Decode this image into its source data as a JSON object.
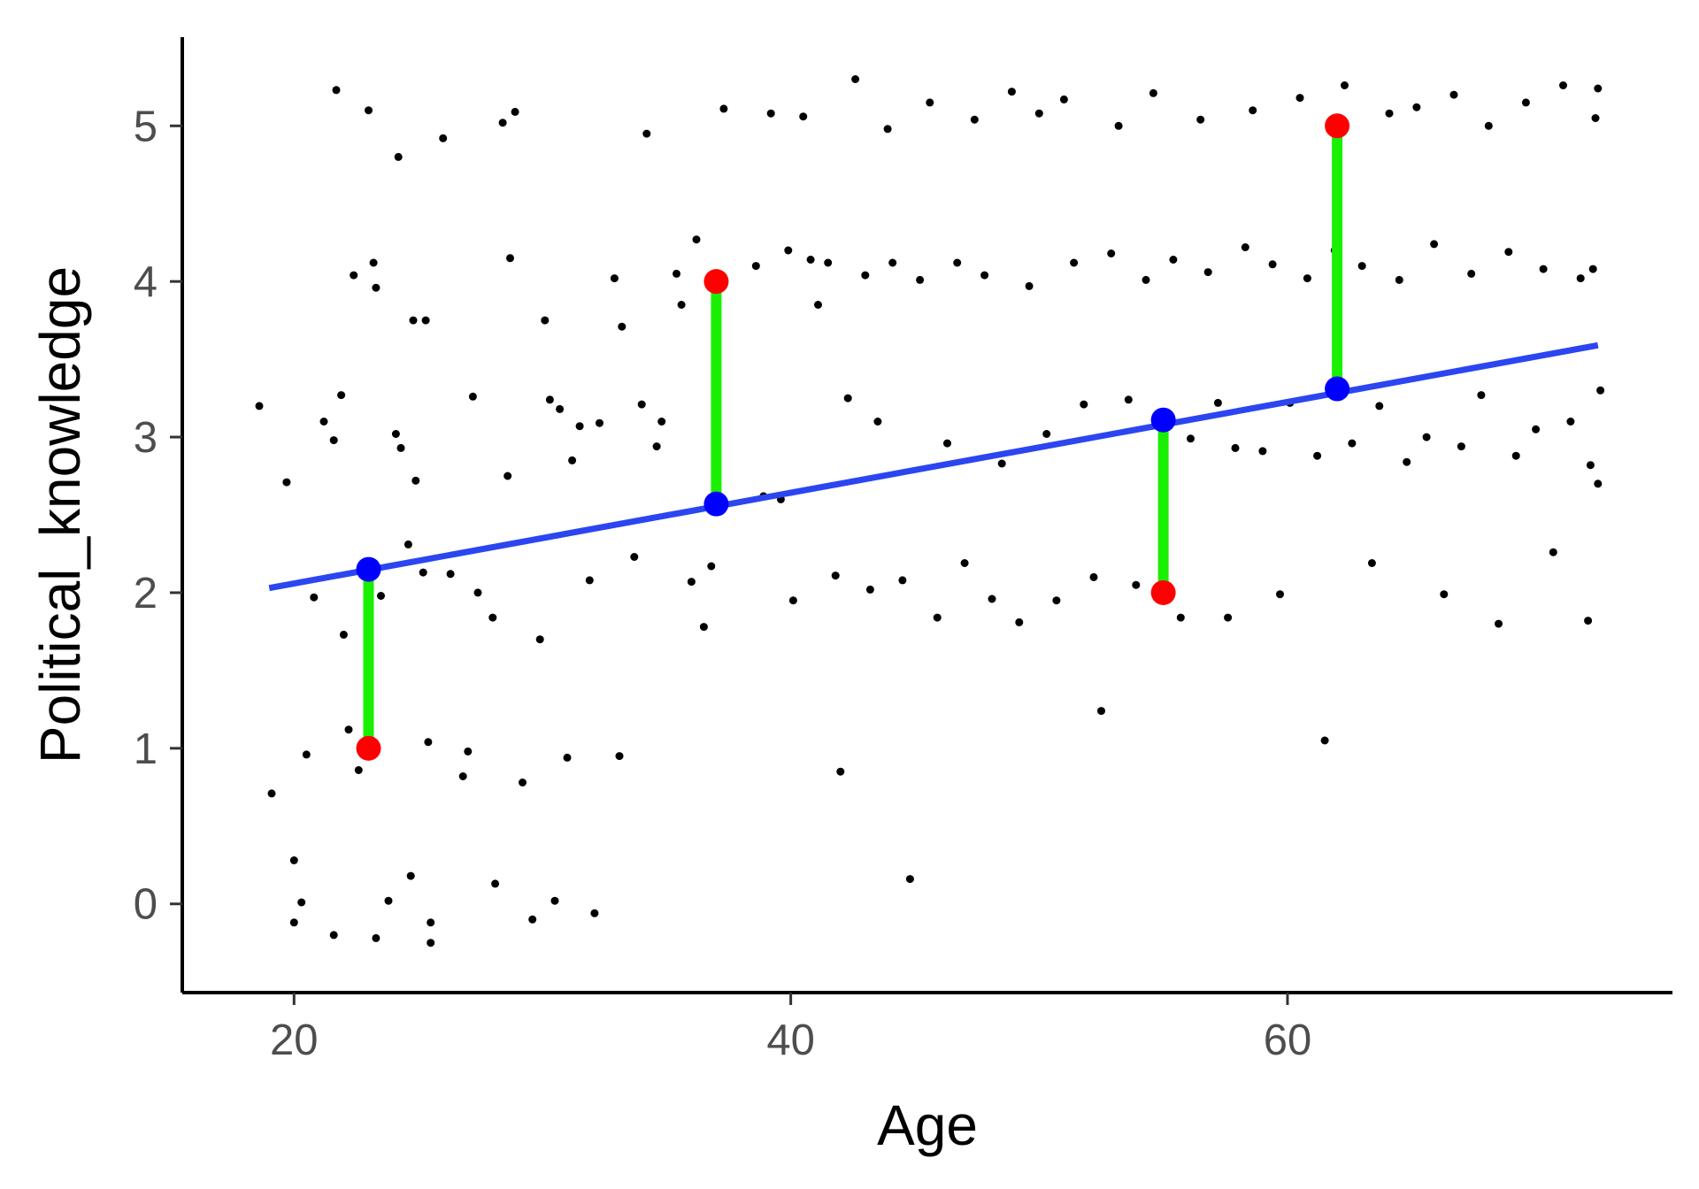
{
  "chart_data": {
    "type": "scatter",
    "title": "",
    "xlabel": "Age",
    "ylabel": "Political_knowledge",
    "xlim": [
      15.5,
      75.5
    ],
    "ylim": [
      -0.57,
      5.57
    ],
    "x_ticks": [
      20,
      40,
      60
    ],
    "y_ticks": [
      0,
      1,
      2,
      3,
      4,
      5
    ],
    "grid": false,
    "legend": "none",
    "colors": {
      "points": "#000000",
      "regression_line": "#2b46f0",
      "residual": "#19f000",
      "observed": "#ff0000",
      "predicted": "#0000ff"
    },
    "regression_line": {
      "x": [
        19,
        72.5
      ],
      "y": [
        2.03,
        3.59
      ]
    },
    "highlighted": [
      {
        "x": 23,
        "observed": 1,
        "predicted": 2.15
      },
      {
        "x": 37,
        "observed": 4,
        "predicted": 2.57
      },
      {
        "x": 55,
        "observed": 2,
        "predicted": 3.11
      },
      {
        "x": 62,
        "observed": 5,
        "predicted": 3.31
      }
    ],
    "points": [
      [
        18.6,
        3.2
      ],
      [
        19.1,
        0.71
      ],
      [
        19.7,
        2.71
      ],
      [
        20.0,
        0.28
      ],
      [
        20.0,
        -0.12
      ],
      [
        20.3,
        0.01
      ],
      [
        20.5,
        0.96
      ],
      [
        20.8,
        1.97
      ],
      [
        21.2,
        3.1
      ],
      [
        21.6,
        2.98
      ],
      [
        21.9,
        3.27
      ],
      [
        22.2,
        1.12
      ],
      [
        21.7,
        5.23
      ],
      [
        22.4,
        4.04
      ],
      [
        21.6,
        -0.2
      ],
      [
        22.0,
        1.73
      ],
      [
        22.6,
        0.86
      ],
      [
        23.0,
        5.1
      ],
      [
        23.2,
        4.12
      ],
      [
        23.3,
        3.96
      ],
      [
        23.5,
        1.98
      ],
      [
        23.8,
        0.02
      ],
      [
        23.3,
        -0.22
      ],
      [
        24.2,
        4.8
      ],
      [
        24.1,
        3.02
      ],
      [
        24.3,
        2.93
      ],
      [
        24.6,
        2.31
      ],
      [
        24.8,
        3.75
      ],
      [
        24.9,
        2.72
      ],
      [
        25.2,
        2.13
      ],
      [
        25.3,
        3.75
      ],
      [
        25.4,
        1.04
      ],
      [
        25.5,
        -0.12
      ],
      [
        25.5,
        -0.25
      ],
      [
        24.7,
        0.18
      ],
      [
        26.0,
        4.92
      ],
      [
        26.3,
        2.12
      ],
      [
        26.8,
        0.82
      ],
      [
        27.2,
        3.26
      ],
      [
        27.0,
        0.98
      ],
      [
        27.4,
        2.0
      ],
      [
        28.0,
        1.84
      ],
      [
        28.1,
        0.13
      ],
      [
        28.4,
        5.02
      ],
      [
        28.7,
        4.15
      ],
      [
        28.9,
        5.09
      ],
      [
        28.6,
        2.75
      ],
      [
        29.2,
        0.78
      ],
      [
        29.6,
        -0.1
      ],
      [
        29.9,
        1.7
      ],
      [
        30.1,
        3.75
      ],
      [
        30.3,
        3.24
      ],
      [
        30.7,
        3.18
      ],
      [
        30.5,
        0.02
      ],
      [
        31.0,
        0.94
      ],
      [
        31.2,
        2.85
      ],
      [
        31.5,
        3.07
      ],
      [
        31.9,
        2.08
      ],
      [
        32.1,
        -0.06
      ],
      [
        32.3,
        3.09
      ],
      [
        32.9,
        4.02
      ],
      [
        33.1,
        0.95
      ],
      [
        33.2,
        3.71
      ],
      [
        33.7,
        2.23
      ],
      [
        34.0,
        3.21
      ],
      [
        34.2,
        4.95
      ],
      [
        34.6,
        2.94
      ],
      [
        34.8,
        3.1
      ],
      [
        35.4,
        4.05
      ],
      [
        35.6,
        3.85
      ],
      [
        36.0,
        2.07
      ],
      [
        36.2,
        4.27
      ],
      [
        36.5,
        1.78
      ],
      [
        36.8,
        2.17
      ],
      [
        37.3,
        5.11
      ],
      [
        38.6,
        4.1
      ],
      [
        38.9,
        2.62
      ],
      [
        39.2,
        5.08
      ],
      [
        39.6,
        2.6
      ],
      [
        39.9,
        4.2
      ],
      [
        40.1,
        1.95
      ],
      [
        40.5,
        5.06
      ],
      [
        40.8,
        4.14
      ],
      [
        41.1,
        3.85
      ],
      [
        41.5,
        4.12
      ],
      [
        41.8,
        2.11
      ],
      [
        42.0,
        0.85
      ],
      [
        42.3,
        3.25
      ],
      [
        42.6,
        5.3
      ],
      [
        43.0,
        4.04
      ],
      [
        43.2,
        2.02
      ],
      [
        43.5,
        3.1
      ],
      [
        43.9,
        4.98
      ],
      [
        44.1,
        4.12
      ],
      [
        44.5,
        2.08
      ],
      [
        44.8,
        0.16
      ],
      [
        45.2,
        4.01
      ],
      [
        45.6,
        5.15
      ],
      [
        45.9,
        1.84
      ],
      [
        46.3,
        2.96
      ],
      [
        46.7,
        4.12
      ],
      [
        47.0,
        2.19
      ],
      [
        47.4,
        5.04
      ],
      [
        47.8,
        4.04
      ],
      [
        48.1,
        1.96
      ],
      [
        48.5,
        2.83
      ],
      [
        48.9,
        5.22
      ],
      [
        49.2,
        1.81
      ],
      [
        49.6,
        3.97
      ],
      [
        50.0,
        5.08
      ],
      [
        50.3,
        3.02
      ],
      [
        50.7,
        1.95
      ],
      [
        51.0,
        5.17
      ],
      [
        51.4,
        4.12
      ],
      [
        51.8,
        3.21
      ],
      [
        52.2,
        2.1
      ],
      [
        52.5,
        1.24
      ],
      [
        52.9,
        4.18
      ],
      [
        53.2,
        5.0
      ],
      [
        53.6,
        3.24
      ],
      [
        53.9,
        2.05
      ],
      [
        54.3,
        4.01
      ],
      [
        54.6,
        5.21
      ],
      [
        55.0,
        3.0
      ],
      [
        55.4,
        4.14
      ],
      [
        55.7,
        1.84
      ],
      [
        56.1,
        2.99
      ],
      [
        56.5,
        5.04
      ],
      [
        56.8,
        4.06
      ],
      [
        57.2,
        3.22
      ],
      [
        57.6,
        1.84
      ],
      [
        57.9,
        2.93
      ],
      [
        58.3,
        4.22
      ],
      [
        58.6,
        5.1
      ],
      [
        59.0,
        2.91
      ],
      [
        59.4,
        4.11
      ],
      [
        59.7,
        1.99
      ],
      [
        60.1,
        3.22
      ],
      [
        60.5,
        5.18
      ],
      [
        60.8,
        4.02
      ],
      [
        61.2,
        2.88
      ],
      [
        61.5,
        1.05
      ],
      [
        61.9,
        4.2
      ],
      [
        62.3,
        5.26
      ],
      [
        62.6,
        2.96
      ],
      [
        63.0,
        4.1
      ],
      [
        63.4,
        2.19
      ],
      [
        63.7,
        3.2
      ],
      [
        64.1,
        5.08
      ],
      [
        64.5,
        4.01
      ],
      [
        64.8,
        2.84
      ],
      [
        65.2,
        5.12
      ],
      [
        65.6,
        3.0
      ],
      [
        65.9,
        4.24
      ],
      [
        66.3,
        1.99
      ],
      [
        66.7,
        5.2
      ],
      [
        67.0,
        2.94
      ],
      [
        67.4,
        4.05
      ],
      [
        67.8,
        3.27
      ],
      [
        68.1,
        5.0
      ],
      [
        68.5,
        1.8
      ],
      [
        68.9,
        4.19
      ],
      [
        69.2,
        2.88
      ],
      [
        69.6,
        5.15
      ],
      [
        70.0,
        3.05
      ],
      [
        70.3,
        4.08
      ],
      [
        70.7,
        2.26
      ],
      [
        71.1,
        5.26
      ],
      [
        71.4,
        3.1
      ],
      [
        71.8,
        4.02
      ],
      [
        72.2,
        2.82
      ],
      [
        72.4,
        5.05
      ],
      [
        72.1,
        1.82
      ],
      [
        72.6,
        3.3
      ],
      [
        72.5,
        2.7
      ],
      [
        72.3,
        4.08
      ],
      [
        72.5,
        5.24
      ]
    ]
  }
}
